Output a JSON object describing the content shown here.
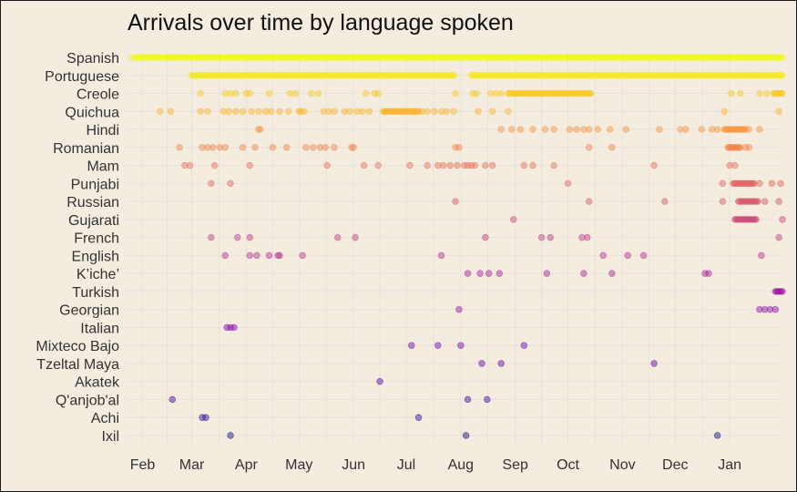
{
  "chart_data": {
    "type": "scatter",
    "title": "Arrivals over time by language spoken",
    "xlabel": "",
    "ylabel": "",
    "grid": true,
    "legend": "none",
    "x_ticks": [
      "Feb",
      "Mar",
      "Apr",
      "May",
      "Jun",
      "Jul",
      "Aug",
      "Sep",
      "Oct",
      "Nov",
      "Dec",
      "Jan"
    ],
    "x_range": [
      "2018-01-25",
      "2019-01-31"
    ],
    "categories": [
      "Spanish",
      "Portuguese",
      "Creole",
      "Quichua",
      "Hindi",
      "Romanian",
      "Mam",
      "Punjabi",
      "Russian",
      "Gujarati",
      "French",
      "English",
      "K’iche’",
      "Turkish",
      "Georgian",
      "Italian",
      "Mixteco Bajo",
      "Tzeltal Maya",
      "Akatek",
      "Q'anjob'al",
      "Achi",
      "Ixil"
    ],
    "colors": [
      "#f0f921",
      "#f4e826",
      "#f9c926",
      "#fdb32f",
      "#f89540",
      "#f1844b",
      "#e9705c",
      "#e16462",
      "#d8576b",
      "#cb4778",
      "#c03a83",
      "#b42e8d",
      "#a62098",
      "#9c179e",
      "#8b0aa5",
      "#7e03a8",
      "#6e00a8",
      "#5e01a6",
      "#4c02a1",
      "#3d049b",
      "#2d0594",
      "#0d0887"
    ],
    "series": [
      {
        "name": "Spanish",
        "dense": [
          [
            "2018-01-28",
            "2019-01-31"
          ]
        ],
        "dates": [
          "2018-01-26"
        ]
      },
      {
        "name": "Portuguese",
        "dense": [
          [
            "2018-03-01",
            "2018-07-28"
          ],
          [
            "2018-08-07",
            "2019-01-31"
          ]
        ],
        "dates": []
      },
      {
        "name": "Creole",
        "dense": [
          [
            "2018-08-28",
            "2018-10-14"
          ],
          [
            "2019-01-26",
            "2019-01-31"
          ]
        ],
        "dates": [
          "2018-03-06",
          "2018-03-20",
          "2018-03-23",
          "2018-03-26",
          "2018-04-01",
          "2018-04-03",
          "2018-04-14",
          "2018-04-26",
          "2018-04-29",
          "2018-05-08",
          "2018-05-12",
          "2018-06-08",
          "2018-06-13",
          "2018-06-15",
          "2018-07-29",
          "2018-08-08",
          "2018-08-10",
          "2018-08-18",
          "2018-08-21",
          "2018-08-24",
          "2019-01-02",
          "2019-01-07",
          "2019-01-18",
          "2019-01-22"
        ]
      },
      {
        "name": "Quichua",
        "dense": [
          [
            "2018-06-18",
            "2018-07-08"
          ]
        ],
        "dates": [
          "2018-02-11",
          "2018-02-17",
          "2018-03-06",
          "2018-03-10",
          "2018-03-19",
          "2018-03-22",
          "2018-03-26",
          "2018-03-30",
          "2018-04-04",
          "2018-04-08",
          "2018-04-12",
          "2018-04-15",
          "2018-04-20",
          "2018-04-25",
          "2018-05-01",
          "2018-05-02",
          "2018-05-04",
          "2018-05-15",
          "2018-05-18",
          "2018-05-21",
          "2018-05-27",
          "2018-05-30",
          "2018-06-03",
          "2018-06-06",
          "2018-06-10",
          "2018-07-10",
          "2018-07-13",
          "2018-07-17",
          "2018-07-21",
          "2018-07-24",
          "2018-07-28",
          "2018-08-11",
          "2018-08-19",
          "2018-08-28",
          "2018-12-29",
          "2019-01-29"
        ]
      },
      {
        "name": "Hindi",
        "dense": [
          [
            "2018-12-29",
            "2019-01-10"
          ]
        ],
        "dates": [
          "2018-04-08",
          "2018-04-09",
          "2018-08-24",
          "2018-08-30",
          "2018-09-04",
          "2018-09-11",
          "2018-09-18",
          "2018-09-23",
          "2018-10-02",
          "2018-10-06",
          "2018-10-10",
          "2018-10-13",
          "2018-10-18",
          "2018-10-25",
          "2018-11-03",
          "2018-11-22",
          "2018-12-04",
          "2018-12-07",
          "2018-12-16",
          "2018-12-22",
          "2018-12-25",
          "2019-01-12",
          "2019-01-18"
        ]
      },
      {
        "name": "Romanian",
        "dense": [
          [
            "2018-12-31",
            "2019-01-07"
          ]
        ],
        "dates": [
          "2018-02-22",
          "2018-03-07",
          "2018-03-10",
          "2018-03-13",
          "2018-03-17",
          "2018-03-20",
          "2018-03-30",
          "2018-04-06",
          "2018-04-16",
          "2018-04-24",
          "2018-05-05",
          "2018-05-09",
          "2018-05-13",
          "2018-05-16",
          "2018-05-21",
          "2018-05-31",
          "2018-06-01",
          "2018-07-29",
          "2018-07-31",
          "2018-10-13",
          "2018-10-26",
          "2019-01-10",
          "2019-01-12"
        ]
      },
      {
        "name": "Mam",
        "dense": [],
        "dates": [
          "2018-02-25",
          "2018-02-28",
          "2018-03-14",
          "2018-04-03",
          "2018-05-17",
          "2018-06-07",
          "2018-06-15",
          "2018-07-03",
          "2018-07-13",
          "2018-07-19",
          "2018-07-22",
          "2018-07-26",
          "2018-07-30",
          "2018-08-03",
          "2018-08-05",
          "2018-08-07",
          "2018-08-09",
          "2018-08-15",
          "2018-08-19",
          "2018-09-06",
          "2018-09-11",
          "2018-09-23",
          "2018-11-19",
          "2019-01-01",
          "2019-01-04"
        ]
      },
      {
        "name": "Punjabi",
        "dense": [
          [
            "2019-01-03",
            "2019-01-15"
          ]
        ],
        "dates": [
          "2018-03-12",
          "2018-03-23",
          "2018-10-01",
          "2018-12-28",
          "2019-01-18",
          "2019-01-25",
          "2019-01-30"
        ]
      },
      {
        "name": "Russian",
        "dense": [
          [
            "2019-01-06",
            "2019-01-17"
          ]
        ],
        "dates": [
          "2018-07-29",
          "2018-10-13",
          "2018-11-25",
          "2018-12-28",
          "2019-01-21",
          "2019-01-29"
        ]
      },
      {
        "name": "Gujarati",
        "dense": [
          [
            "2019-01-04",
            "2019-01-16"
          ]
        ],
        "dates": [
          "2018-08-31",
          "2019-01-31"
        ]
      },
      {
        "name": "French",
        "dense": [],
        "dates": [
          "2018-03-12",
          "2018-03-27",
          "2018-04-03",
          "2018-05-23",
          "2018-06-02",
          "2018-08-15",
          "2018-09-16",
          "2018-09-21",
          "2018-10-09",
          "2018-10-12",
          "2019-01-29"
        ]
      },
      {
        "name": "English",
        "dense": [],
        "dates": [
          "2018-03-20",
          "2018-04-03",
          "2018-04-07",
          "2018-04-14",
          "2018-04-19",
          "2018-04-20",
          "2018-05-03",
          "2018-07-21",
          "2018-10-21",
          "2018-11-04",
          "2018-11-13",
          "2019-01-19"
        ]
      },
      {
        "name": "K’iche’",
        "dense": [],
        "dates": [
          "2018-08-05",
          "2018-08-12",
          "2018-08-17",
          "2018-08-23",
          "2018-09-19",
          "2018-10-10",
          "2018-10-26",
          "2018-12-18",
          "2018-12-20"
        ]
      },
      {
        "name": "Turkish",
        "dense": [
          [
            "2019-01-27",
            "2019-01-31"
          ]
        ],
        "dates": []
      },
      {
        "name": "Georgian",
        "dense": [],
        "dates": [
          "2018-07-31",
          "2019-01-18",
          "2019-01-21",
          "2019-01-24",
          "2019-01-27"
        ]
      },
      {
        "name": "Italian",
        "dense": [],
        "dates": [
          "2018-03-21",
          "2018-03-23",
          "2018-03-25"
        ]
      },
      {
        "name": "Mixteco Bajo",
        "dense": [],
        "dates": [
          "2018-07-04",
          "2018-07-19",
          "2018-08-01",
          "2018-09-06"
        ]
      },
      {
        "name": "Tzeltal Maya",
        "dense": [],
        "dates": [
          "2018-08-13",
          "2018-08-24",
          "2018-11-19"
        ]
      },
      {
        "name": "Akatek",
        "dense": [],
        "dates": [
          "2018-06-16"
        ]
      },
      {
        "name": "Q'anjob'al",
        "dense": [],
        "dates": [
          "2018-02-18",
          "2018-08-05",
          "2018-08-16"
        ]
      },
      {
        "name": "Achi",
        "dense": [],
        "dates": [
          "2018-03-07",
          "2018-03-09",
          "2018-07-08"
        ]
      },
      {
        "name": "Ixil",
        "dense": [],
        "dates": [
          "2018-03-23",
          "2018-08-04",
          "2018-12-25"
        ]
      }
    ]
  }
}
